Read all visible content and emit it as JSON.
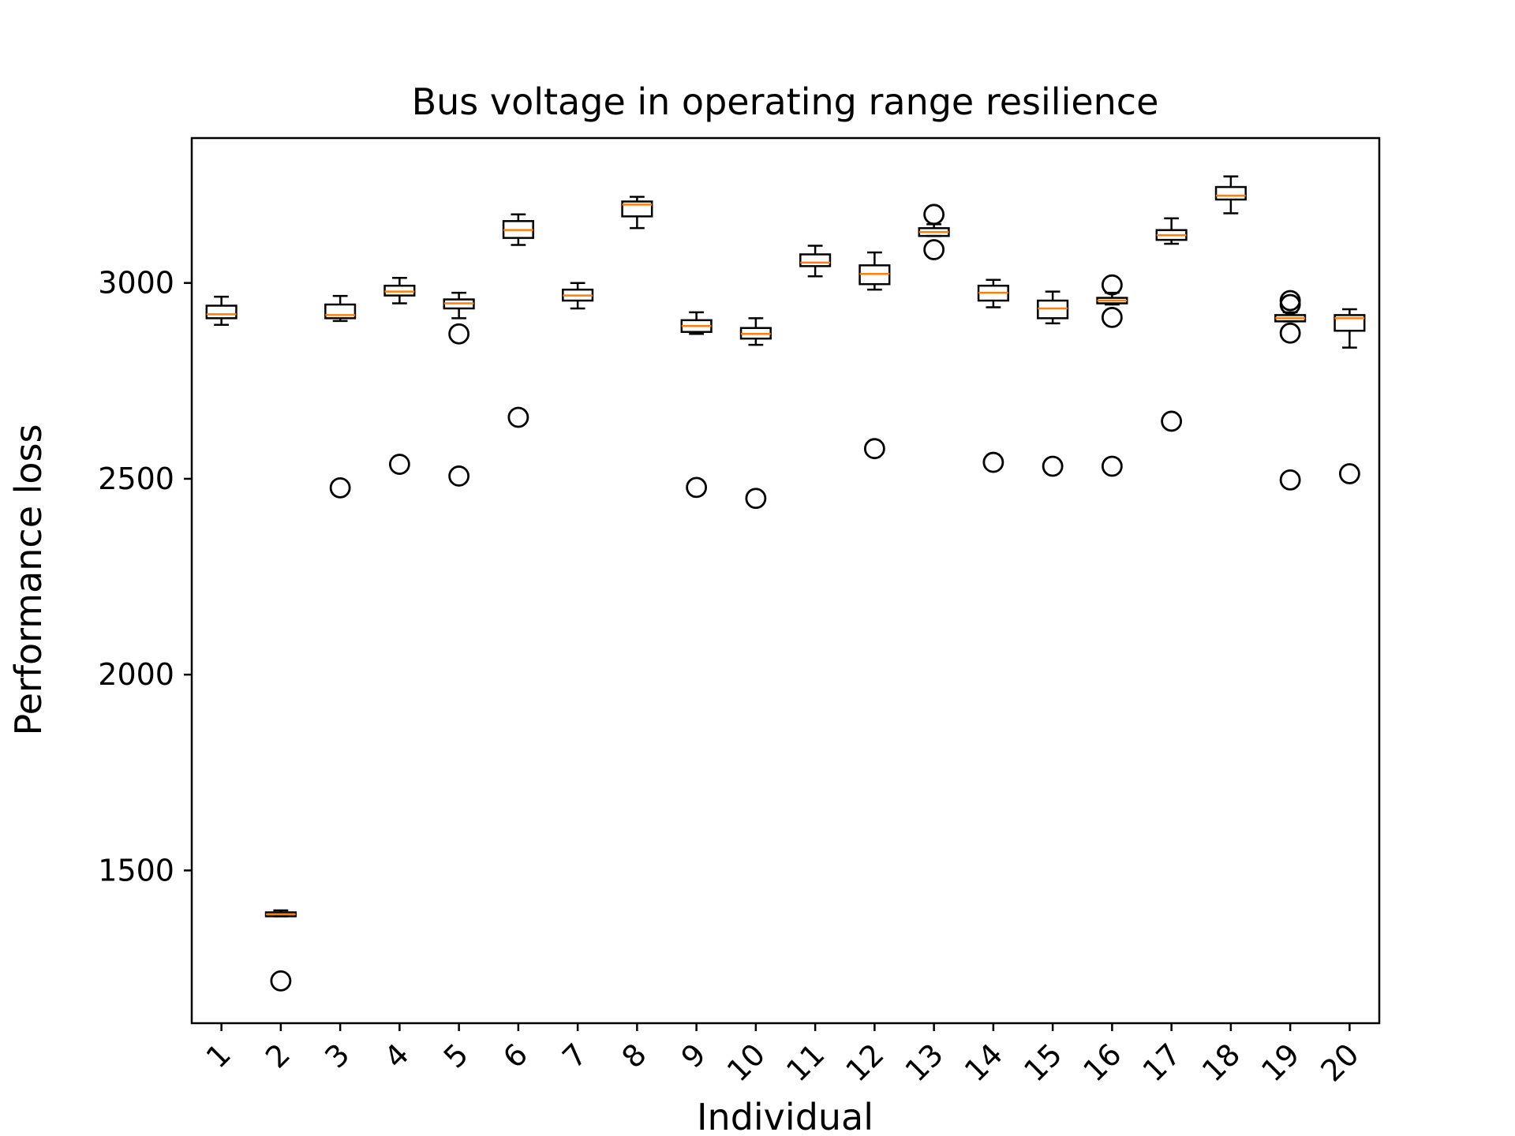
{
  "chart_data": {
    "type": "box",
    "title": "Bus voltage in operating range resilience",
    "xlabel": "Individual",
    "ylabel": "Performance loss",
    "ylim": [
      1110,
      3370
    ],
    "yticks": [
      1500,
      2000,
      2500,
      3000
    ],
    "grid": false,
    "colors": {
      "box": "#000000",
      "median": "#ff7f0e",
      "outlier": "#000000"
    },
    "categories": [
      "1",
      "2",
      "3",
      "4",
      "5",
      "6",
      "7",
      "8",
      "9",
      "10",
      "11",
      "12",
      "13",
      "14",
      "15",
      "16",
      "17",
      "18",
      "19",
      "20"
    ],
    "boxes": [
      {
        "whislo": 2893,
        "q1": 2910,
        "med": 2920,
        "q3": 2942,
        "whishi": 2965,
        "fliers": []
      },
      {
        "whislo": 1383,
        "q1": 1383,
        "med": 1388,
        "q3": 1393,
        "whishi": 1398,
        "fliers": [
          1218
        ]
      },
      {
        "whislo": 2903,
        "q1": 2910,
        "med": 2918,
        "q3": 2945,
        "whishi": 2967,
        "fliers": [
          2477
        ]
      },
      {
        "whislo": 2948,
        "q1": 2968,
        "med": 2978,
        "q3": 2993,
        "whishi": 3013,
        "fliers": [
          2537
        ]
      },
      {
        "whislo": 2910,
        "q1": 2935,
        "med": 2948,
        "q3": 2958,
        "whishi": 2975,
        "fliers": [
          2870,
          2507
        ]
      },
      {
        "whislo": 3097,
        "q1": 3115,
        "med": 3135,
        "q3": 3158,
        "whishi": 3175,
        "fliers": [
          2657
        ]
      },
      {
        "whislo": 2935,
        "q1": 2955,
        "med": 2968,
        "q3": 2983,
        "whishi": 3000,
        "fliers": []
      },
      {
        "whislo": 3140,
        "q1": 3170,
        "med": 3200,
        "q3": 3208,
        "whishi": 3220,
        "fliers": []
      },
      {
        "whislo": 2870,
        "q1": 2875,
        "med": 2890,
        "q3": 2905,
        "whishi": 2925,
        "fliers": [
          2478
        ]
      },
      {
        "whislo": 2842,
        "q1": 2858,
        "med": 2870,
        "q3": 2885,
        "whishi": 2910,
        "fliers": [
          2450
        ]
      },
      {
        "whislo": 3017,
        "q1": 3043,
        "med": 3052,
        "q3": 3073,
        "whishi": 3095,
        "fliers": []
      },
      {
        "whislo": 2983,
        "q1": 2997,
        "med": 3023,
        "q3": 3045,
        "whishi": 3078,
        "fliers": [
          2577
        ]
      },
      {
        "whislo": 3120,
        "q1": 3120,
        "med": 3130,
        "q3": 3140,
        "whishi": 3150,
        "fliers": [
          3175,
          3085
        ]
      },
      {
        "whislo": 2938,
        "q1": 2955,
        "med": 2975,
        "q3": 2993,
        "whishi": 3008,
        "fliers": [
          2542
        ]
      },
      {
        "whislo": 2897,
        "q1": 2910,
        "med": 2935,
        "q3": 2955,
        "whishi": 2978,
        "fliers": [
          2532
        ]
      },
      {
        "whislo": 2945,
        "q1": 2948,
        "med": 2955,
        "q3": 2962,
        "whishi": 2975,
        "fliers": [
          2995,
          2912,
          2532
        ]
      },
      {
        "whislo": 3100,
        "q1": 3110,
        "med": 3122,
        "q3": 3135,
        "whishi": 3165,
        "fliers": [
          2647
        ]
      },
      {
        "whislo": 3178,
        "q1": 3213,
        "med": 3223,
        "q3": 3245,
        "whishi": 3272,
        "fliers": []
      },
      {
        "whislo": 2902,
        "q1": 2902,
        "med": 2910,
        "q3": 2918,
        "whishi": 2925,
        "fliers": [
          2955,
          2945,
          2872,
          2497
        ]
      },
      {
        "whislo": 2835,
        "q1": 2878,
        "med": 2910,
        "q3": 2918,
        "whishi": 2933,
        "fliers": [
          2513
        ]
      }
    ]
  }
}
